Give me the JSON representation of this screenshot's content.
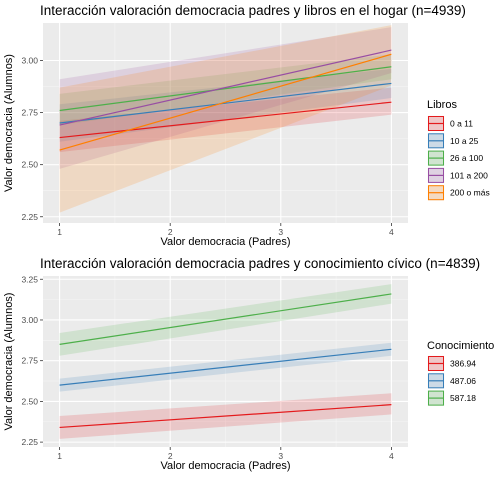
{
  "chart_data": [
    {
      "type": "line",
      "title": "Interacción valoración democracia padres y libros en el hogar (n=4939)",
      "xlabel": "Valor democracia (Padres)",
      "ylabel": "Valor democracia (Alumnos)",
      "xlim": [
        0.85,
        4.15
      ],
      "ylim": [
        2.22,
        3.18
      ],
      "x_ticks": [
        "1",
        "2",
        "3",
        "4"
      ],
      "y_ticks": [
        "2.25",
        "2.50",
        "2.75",
        "3.00"
      ],
      "y_tick_values": [
        2.25,
        2.5,
        2.75,
        3.0
      ],
      "grid": true,
      "legend_title": "Libros",
      "legend_position": "right",
      "series": [
        {
          "name": "0 a 11",
          "color": "#e41a1c",
          "x": [
            1,
            4
          ],
          "y": [
            2.63,
            2.8
          ],
          "lower": [
            2.56,
            2.74
          ],
          "upper": [
            2.71,
            2.87
          ]
        },
        {
          "name": "10 a 25",
          "color": "#377eb8",
          "x": [
            1,
            4
          ],
          "y": [
            2.7,
            2.89
          ],
          "lower": [
            2.61,
            2.82
          ],
          "upper": [
            2.79,
            2.96
          ]
        },
        {
          "name": "26 a 100",
          "color": "#4daf4a",
          "x": [
            1,
            4
          ],
          "y": [
            2.76,
            2.97
          ],
          "lower": [
            2.69,
            2.91
          ],
          "upper": [
            2.84,
            3.03
          ]
        },
        {
          "name": "101 a 200",
          "color": "#984ea3",
          "x": [
            1,
            4
          ],
          "y": [
            2.69,
            3.05
          ],
          "lower": [
            2.48,
            2.94
          ],
          "upper": [
            2.91,
            3.16
          ]
        },
        {
          "name": "200 o más",
          "color": "#ff7f00",
          "x": [
            1,
            4
          ],
          "y": [
            2.57,
            3.03
          ],
          "lower": [
            2.27,
            2.88
          ],
          "upper": [
            2.87,
            3.17
          ]
        }
      ]
    },
    {
      "type": "line",
      "title": "Interacción valoración democracia padres y conocimiento cívico (n=4839)",
      "xlabel": "Valor democracia (Padres)",
      "ylabel": "Valor democracia (Alumnos)",
      "xlim": [
        0.85,
        4.15
      ],
      "ylim": [
        2.22,
        3.27
      ],
      "x_ticks": [
        "1",
        "2",
        "3",
        "4"
      ],
      "y_ticks": [
        "2.25",
        "2.50",
        "2.75",
        "3.00",
        "3.25"
      ],
      "y_tick_values": [
        2.25,
        2.5,
        2.75,
        3.0,
        3.25
      ],
      "grid": true,
      "legend_title": "Conocimiento",
      "legend_position": "right",
      "series": [
        {
          "name": "386.94",
          "color": "#e41a1c",
          "x": [
            1,
            4
          ],
          "y": [
            2.34,
            2.48
          ],
          "lower": [
            2.27,
            2.42
          ],
          "upper": [
            2.41,
            2.55
          ]
        },
        {
          "name": "487.06",
          "color": "#377eb8",
          "x": [
            1,
            4
          ],
          "y": [
            2.6,
            2.82
          ],
          "lower": [
            2.56,
            2.78
          ],
          "upper": [
            2.64,
            2.86
          ]
        },
        {
          "name": "587.18",
          "color": "#4daf4a",
          "x": [
            1,
            4
          ],
          "y": [
            2.85,
            3.16
          ],
          "lower": [
            2.78,
            3.1
          ],
          "upper": [
            2.92,
            3.22
          ]
        }
      ]
    }
  ]
}
